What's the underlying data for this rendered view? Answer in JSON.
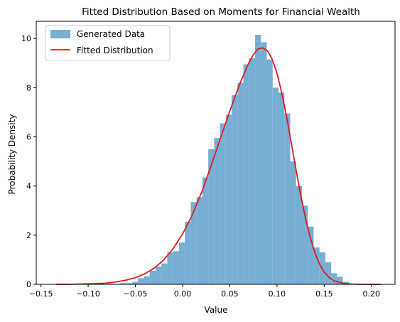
{
  "chart_data": {
    "type": "bar",
    "title": "Fitted Distribution Based on Moments for Financial Wealth",
    "xlabel": "Value",
    "ylabel": "Probability Density",
    "xlim": [
      -0.155,
      0.225
    ],
    "ylim": [
      0,
      10.7
    ],
    "xticks": [
      -0.15,
      -0.1,
      -0.05,
      0.0,
      0.05,
      0.1,
      0.15,
      0.2
    ],
    "xtick_labels": [
      "−0.15",
      "−0.10",
      "−0.05",
      "0.00",
      "0.05",
      "0.10",
      "0.15",
      "0.20"
    ],
    "yticks": [
      0,
      2,
      4,
      6,
      8,
      10
    ],
    "ytick_labels": [
      "0",
      "2",
      "4",
      "6",
      "8",
      "10"
    ],
    "grid": false,
    "legend_position": "top-left",
    "histogram": {
      "name": "Generated Data",
      "color": "#77aed3",
      "bin_width": 0.0062,
      "bins": [
        {
          "x0": -0.134,
          "y": 0.03
        },
        {
          "x0": -0.1278,
          "y": 0.03
        },
        {
          "x0": -0.1216,
          "y": 0.0
        },
        {
          "x0": -0.1154,
          "y": 0.0
        },
        {
          "x0": -0.1092,
          "y": 0.0
        },
        {
          "x0": -0.103,
          "y": 0.0
        },
        {
          "x0": -0.0968,
          "y": 0.03
        },
        {
          "x0": -0.0906,
          "y": 0.03
        },
        {
          "x0": -0.0844,
          "y": 0.0
        },
        {
          "x0": -0.0782,
          "y": 0.03
        },
        {
          "x0": -0.072,
          "y": 0.0
        },
        {
          "x0": -0.0658,
          "y": 0.05
        },
        {
          "x0": -0.0596,
          "y": 0.05
        },
        {
          "x0": -0.0534,
          "y": 0.1
        },
        {
          "x0": -0.0472,
          "y": 0.25
        },
        {
          "x0": -0.041,
          "y": 0.33
        },
        {
          "x0": -0.0348,
          "y": 0.55
        },
        {
          "x0": -0.0286,
          "y": 0.72
        },
        {
          "x0": -0.0224,
          "y": 0.85
        },
        {
          "x0": -0.0162,
          "y": 1.3
        },
        {
          "x0": -0.01,
          "y": 1.35
        },
        {
          "x0": -0.0038,
          "y": 1.7
        },
        {
          "x0": 0.0024,
          "y": 2.55
        },
        {
          "x0": 0.0086,
          "y": 3.35
        },
        {
          "x0": 0.0148,
          "y": 3.55
        },
        {
          "x0": 0.021,
          "y": 4.35
        },
        {
          "x0": 0.0272,
          "y": 5.5
        },
        {
          "x0": 0.0334,
          "y": 5.95
        },
        {
          "x0": 0.0396,
          "y": 6.55
        },
        {
          "x0": 0.0458,
          "y": 6.9
        },
        {
          "x0": 0.052,
          "y": 7.7
        },
        {
          "x0": 0.0582,
          "y": 8.2
        },
        {
          "x0": 0.0644,
          "y": 8.95
        },
        {
          "x0": 0.0706,
          "y": 9.2
        },
        {
          "x0": 0.0768,
          "y": 10.15
        },
        {
          "x0": 0.083,
          "y": 9.85
        },
        {
          "x0": 0.0892,
          "y": 9.15
        },
        {
          "x0": 0.0954,
          "y": 8.0
        },
        {
          "x0": 0.1016,
          "y": 7.8
        },
        {
          "x0": 0.1078,
          "y": 6.95
        },
        {
          "x0": 0.114,
          "y": 5.0
        },
        {
          "x0": 0.1202,
          "y": 4.0
        },
        {
          "x0": 0.1264,
          "y": 3.2
        },
        {
          "x0": 0.1326,
          "y": 2.35
        },
        {
          "x0": 0.1388,
          "y": 1.5
        },
        {
          "x0": 0.145,
          "y": 1.3
        },
        {
          "x0": 0.1512,
          "y": 0.9
        },
        {
          "x0": 0.1574,
          "y": 0.45
        },
        {
          "x0": 0.1636,
          "y": 0.3
        },
        {
          "x0": 0.1698,
          "y": 0.1
        },
        {
          "x0": 0.176,
          "y": 0.03
        },
        {
          "x0": 0.1822,
          "y": 0.03
        }
      ]
    },
    "fitted_curve": {
      "name": "Fitted Distribution",
      "color": "#e31a1c",
      "x": [
        -0.134,
        -0.12,
        -0.11,
        -0.1,
        -0.09,
        -0.08,
        -0.07,
        -0.06,
        -0.05,
        -0.04,
        -0.03,
        -0.02,
        -0.01,
        0.0,
        0.01,
        0.02,
        0.03,
        0.04,
        0.05,
        0.06,
        0.065,
        0.07,
        0.075,
        0.08,
        0.085,
        0.09,
        0.095,
        0.1,
        0.105,
        0.11,
        0.115,
        0.12,
        0.125,
        0.13,
        0.135,
        0.14,
        0.145,
        0.15,
        0.155,
        0.16,
        0.17,
        0.18,
        0.19,
        0.2,
        0.21
      ],
      "y": [
        0.0,
        0.0,
        0.01,
        0.02,
        0.03,
        0.05,
        0.1,
        0.17,
        0.27,
        0.43,
        0.66,
        0.99,
        1.45,
        2.05,
        2.8,
        3.73,
        4.8,
        5.93,
        7.05,
        8.1,
        8.55,
        9.0,
        9.35,
        9.58,
        9.62,
        9.5,
        9.15,
        8.58,
        7.8,
        6.85,
        5.78,
        4.7,
        3.65,
        2.72,
        1.93,
        1.3,
        0.83,
        0.5,
        0.29,
        0.15,
        0.04,
        0.01,
        0.0,
        0.0,
        0.0
      ]
    }
  }
}
